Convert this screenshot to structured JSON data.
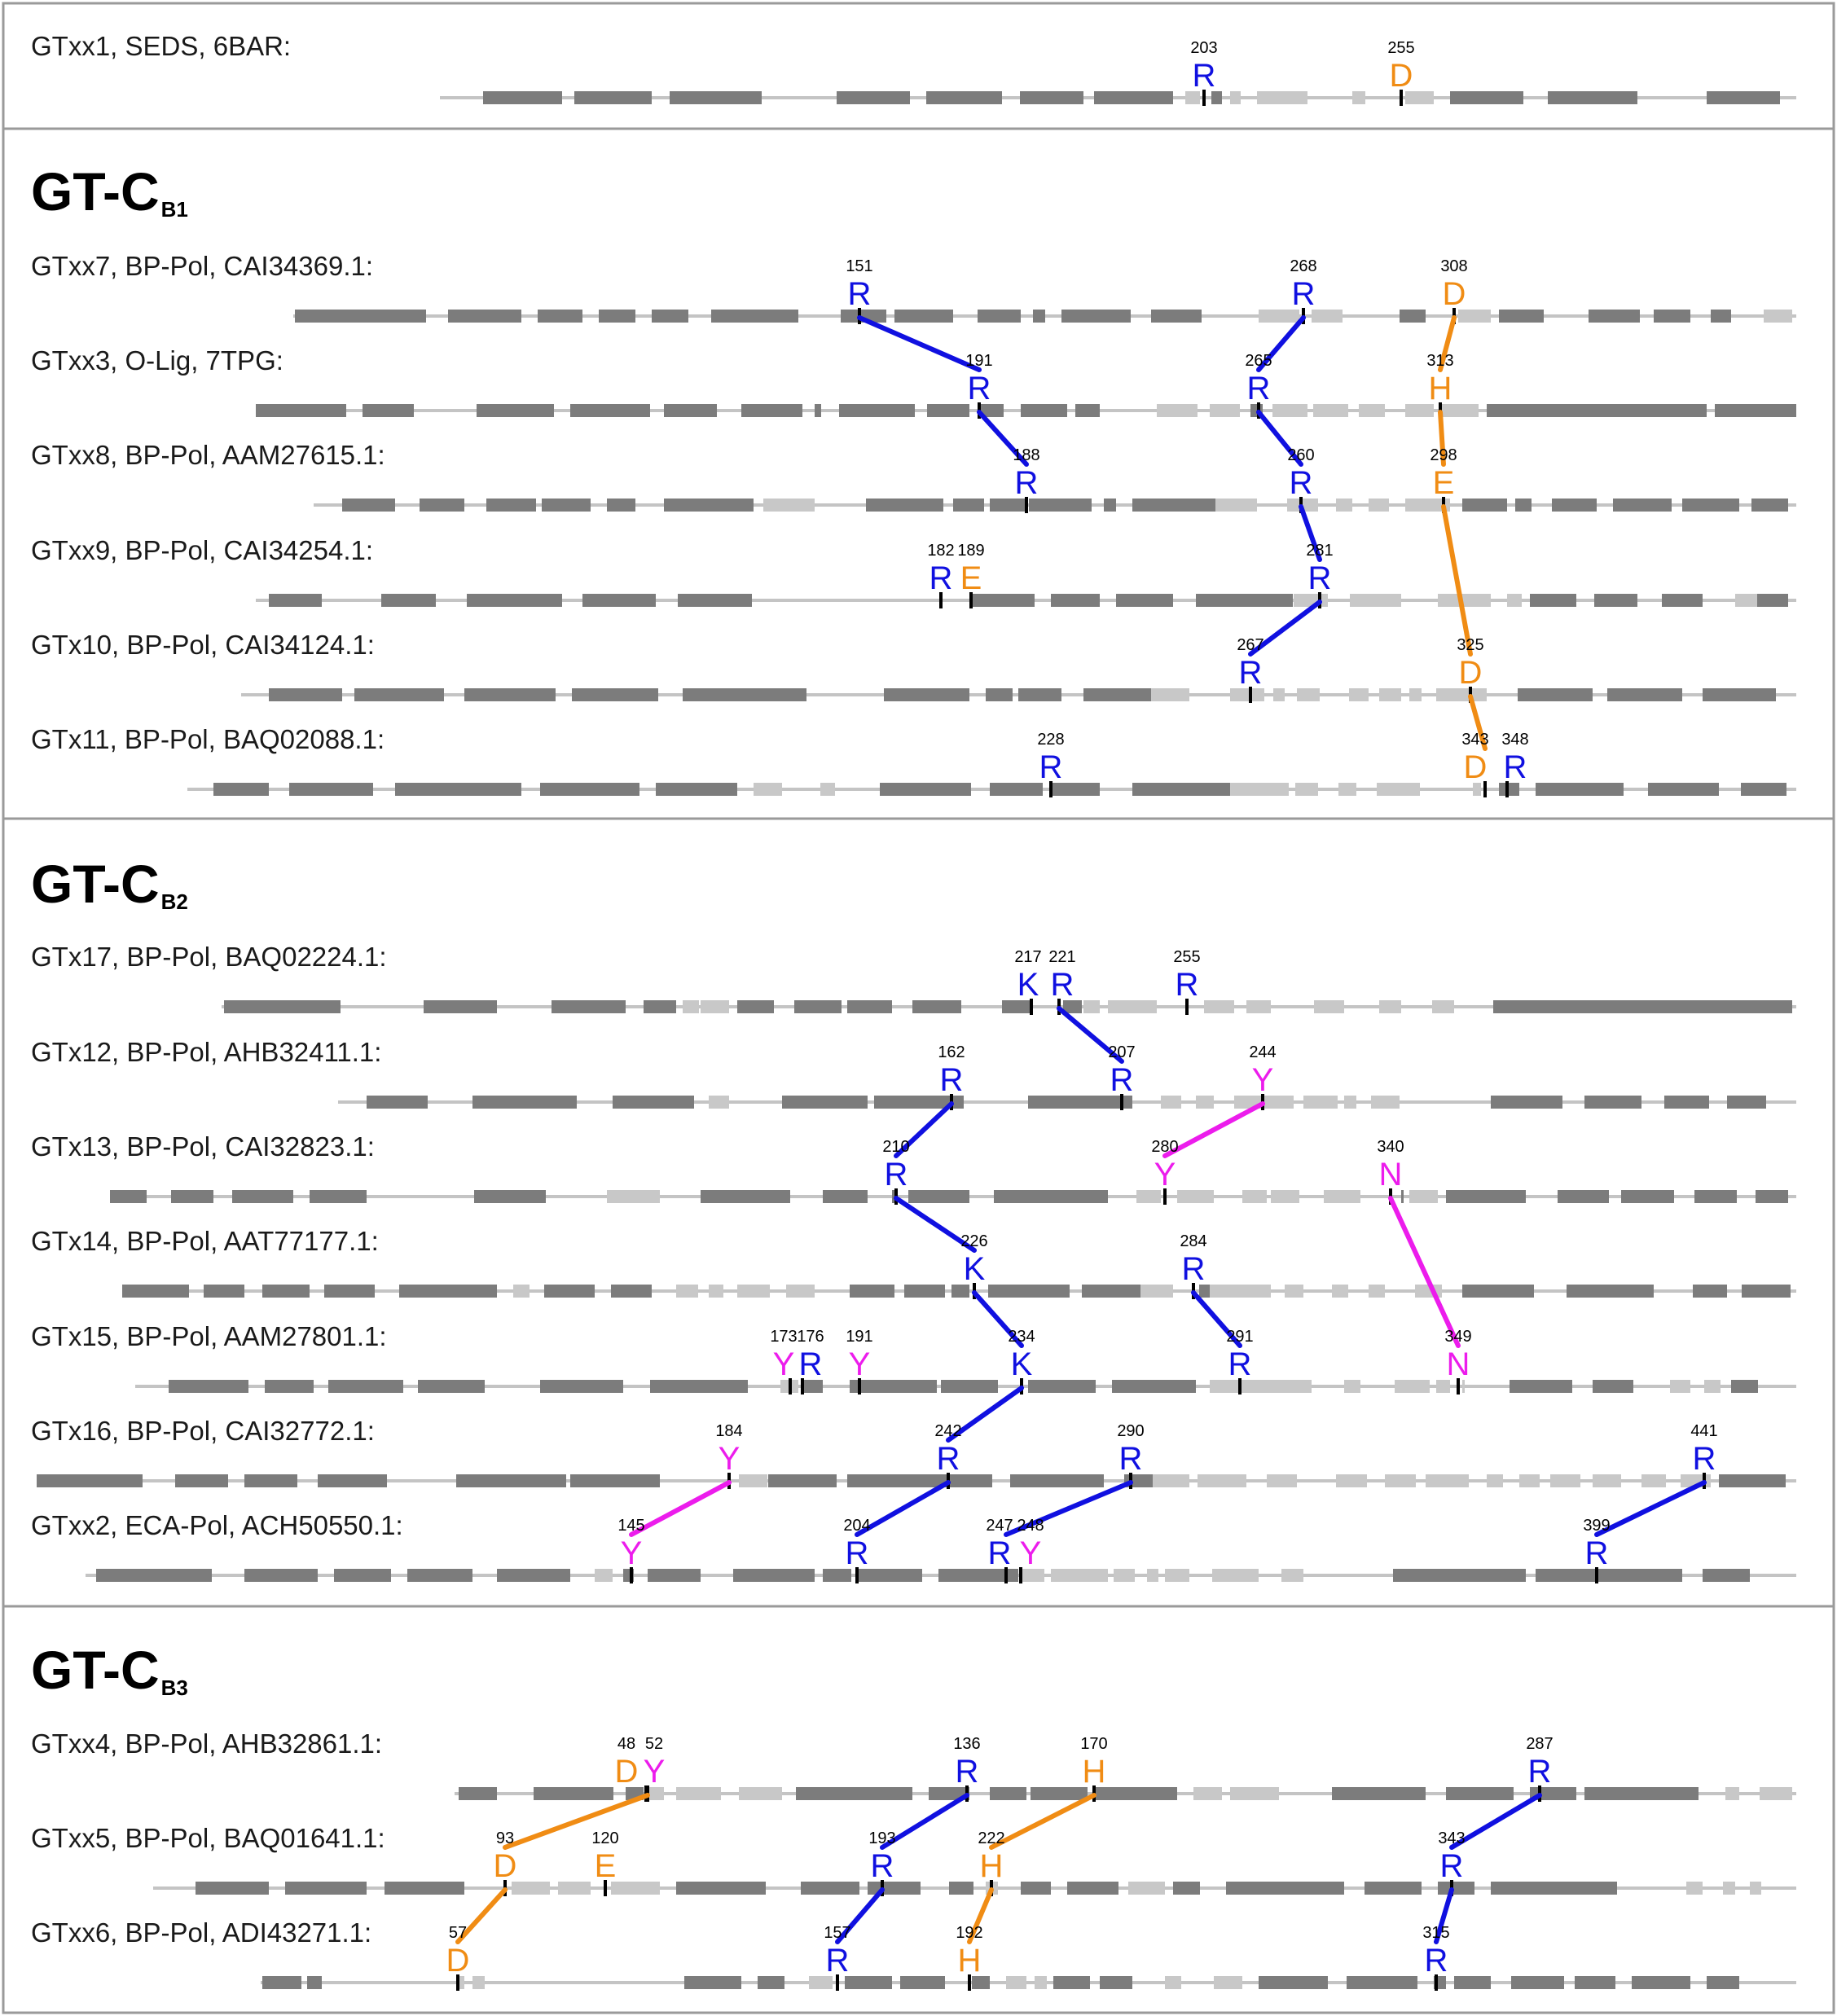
{
  "colors": {
    "R": "#1010e0",
    "K": "#1010e0",
    "D": "#f08c14",
    "E": "#f08c14",
    "H": "#f08c14",
    "Y": "#ec1cec",
    "N": "#ec1cec"
  },
  "groups": [
    {
      "title": "",
      "sub": "",
      "rows": [
        {
          "label": "GTxx1, SEDS, 6BAR:"
        }
      ]
    },
    {
      "title": "GT-C",
      "sub": "B1",
      "rows": [
        {
          "label": "GTxx7, BP-Pol, CAI34369.1:"
        },
        {
          "label": "GTxx3, O-Lig, 7TPG:"
        },
        {
          "label": "GTxx8, BP-Pol, AAM27615.1:"
        },
        {
          "label": "GTxx9, BP-Pol, CAI34254.1:"
        },
        {
          "label": "GTx10, BP-Pol, CAI34124.1:"
        },
        {
          "label": "GTx11, BP-Pol, BAQ02088.1:"
        }
      ]
    },
    {
      "title": "GT-C",
      "sub": "B2",
      "rows": [
        {
          "label": "GTx17, BP-Pol, BAQ02224.1:"
        },
        {
          "label": "GTx12, BP-Pol, AHB32411.1:"
        },
        {
          "label": "GTx13, BP-Pol, CAI32823.1:"
        },
        {
          "label": "GTx14, BP-Pol, AAT77177.1:"
        },
        {
          "label": "GTx15, BP-Pol, AAM27801.1:"
        },
        {
          "label": "GTx16, BP-Pol, CAI32772.1:"
        },
        {
          "label": "GTxx2, ECA-Pol, ACH50550.1:"
        }
      ]
    },
    {
      "title": "GT-C",
      "sub": "B3",
      "rows": [
        {
          "label": "GTxx4, BP-Pol, AHB32861.1:"
        },
        {
          "label": "GTxx5, BP-Pol, BAQ01641.1:"
        },
        {
          "label": "GTxx6, BP-Pol, ADI43271.1:"
        }
      ]
    }
  ],
  "residues": [
    [
      [
        {
          "n": "203",
          "aa": "R"
        },
        {
          "n": "255",
          "aa": "D"
        }
      ]
    ],
    [
      [
        {
          "n": "151",
          "aa": "R"
        },
        {
          "n": "268",
          "aa": "R"
        },
        {
          "n": "308",
          "aa": "D"
        }
      ],
      [
        {
          "n": "191",
          "aa": "R"
        },
        {
          "n": "265",
          "aa": "R"
        },
        {
          "n": "313",
          "aa": "H"
        }
      ],
      [
        {
          "n": "188",
          "aa": "R"
        },
        {
          "n": "260",
          "aa": "R"
        },
        {
          "n": "298",
          "aa": "E"
        }
      ],
      [
        {
          "n": "182",
          "aa": "R"
        },
        {
          "n": "189",
          "aa": "E"
        },
        {
          "n": "281",
          "aa": "R"
        }
      ],
      [
        {
          "n": "267",
          "aa": "R"
        },
        {
          "n": "325",
          "aa": "D"
        }
      ],
      [
        {
          "n": "228",
          "aa": "R"
        },
        {
          "n": "343",
          "aa": "D"
        },
        {
          "n": "348",
          "aa": "R"
        }
      ]
    ],
    [
      [
        {
          "n": "217",
          "aa": "K"
        },
        {
          "n": "221",
          "aa": "R"
        },
        {
          "n": "255",
          "aa": "R"
        }
      ],
      [
        {
          "n": "162",
          "aa": "R"
        },
        {
          "n": "207",
          "aa": "R"
        },
        {
          "n": "244",
          "aa": "Y"
        }
      ],
      [
        {
          "n": "210",
          "aa": "R"
        },
        {
          "n": "280",
          "aa": "Y"
        },
        {
          "n": "340",
          "aa": "N"
        }
      ],
      [
        {
          "n": "226",
          "aa": "K"
        },
        {
          "n": "284",
          "aa": "R"
        }
      ],
      [
        {
          "n": "173",
          "aa": "Y"
        },
        {
          "n": "176",
          "aa": "R"
        },
        {
          "n": "191",
          "aa": "Y"
        },
        {
          "n": "234",
          "aa": "K"
        },
        {
          "n": "291",
          "aa": "R"
        },
        {
          "n": "349",
          "aa": "N"
        }
      ],
      [
        {
          "n": "184",
          "aa": "Y"
        },
        {
          "n": "242",
          "aa": "R"
        },
        {
          "n": "290",
          "aa": "R"
        },
        {
          "n": "441",
          "aa": "R"
        }
      ],
      [
        {
          "n": "145",
          "aa": "Y"
        },
        {
          "n": "204",
          "aa": "R"
        },
        {
          "n": "247",
          "aa": "R"
        },
        {
          "n": "248",
          "aa": "Y"
        },
        {
          "n": "399",
          "aa": "R"
        }
      ]
    ],
    [
      [
        {
          "n": "48",
          "aa": "D"
        },
        {
          "n": "52",
          "aa": "Y"
        },
        {
          "n": "136",
          "aa": "R"
        },
        {
          "n": "170",
          "aa": "H"
        },
        {
          "n": "287",
          "aa": "R"
        }
      ],
      [
        {
          "n": "93",
          "aa": "D"
        },
        {
          "n": "120",
          "aa": "E"
        },
        {
          "n": "193",
          "aa": "R"
        },
        {
          "n": "222",
          "aa": "H"
        },
        {
          "n": "343",
          "aa": "R"
        }
      ],
      [
        {
          "n": "57",
          "aa": "D"
        },
        {
          "n": "157",
          "aa": "R"
        },
        {
          "n": "192",
          "aa": "H"
        },
        {
          "n": "315",
          "aa": "R"
        }
      ]
    ]
  ]
}
